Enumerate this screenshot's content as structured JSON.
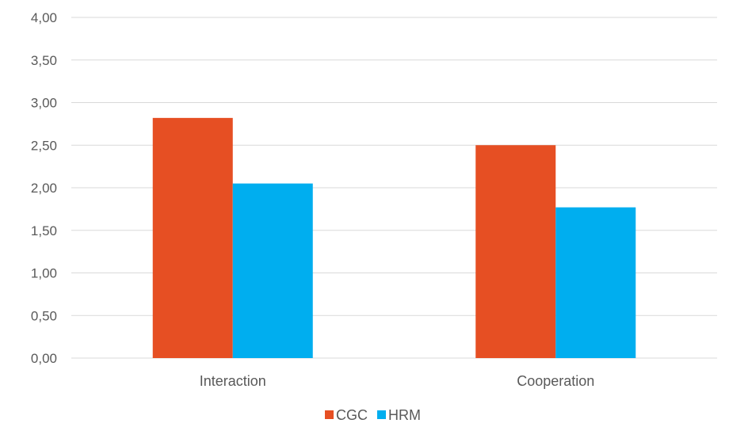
{
  "chart_data": {
    "type": "bar",
    "categories": [
      "Interaction",
      "Cooperation"
    ],
    "series": [
      {
        "name": "CGC",
        "values": [
          2.82,
          2.5
        ],
        "color": "#E64F23"
      },
      {
        "name": "HRM",
        "values": [
          2.05,
          1.77
        ],
        "color": "#00AEEF"
      }
    ],
    "ylim": [
      0,
      4
    ],
    "yticks": [
      "0,00",
      "0,50",
      "1,00",
      "1,50",
      "2,00",
      "2,50",
      "3,00",
      "3,50",
      "4,00"
    ],
    "ytick_values": [
      0,
      0.5,
      1,
      1.5,
      2,
      2.5,
      3,
      3.5,
      4
    ],
    "grid": true,
    "legend_position": "bottom"
  }
}
